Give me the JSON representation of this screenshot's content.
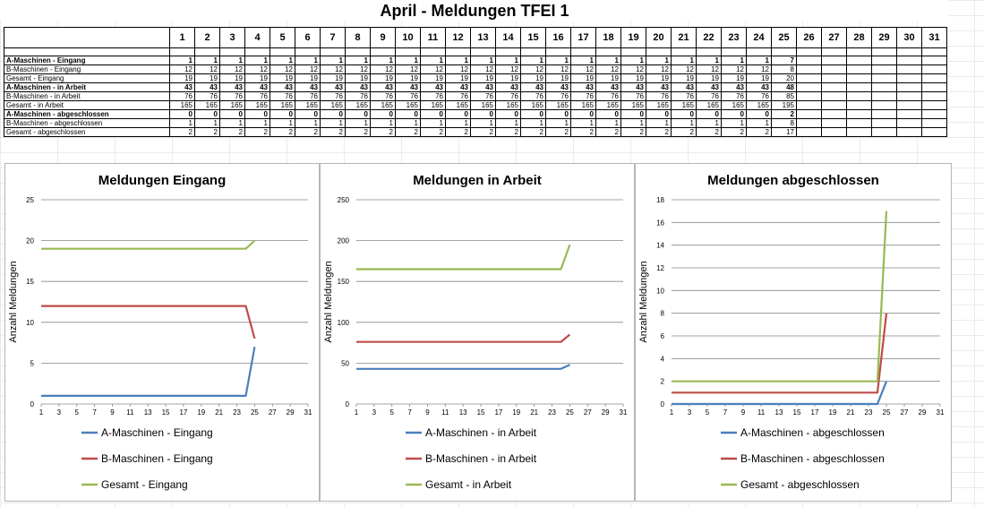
{
  "title": "April - Meldungen TFEI 1",
  "days": [
    1,
    2,
    3,
    4,
    5,
    6,
    7,
    8,
    9,
    10,
    11,
    12,
    13,
    14,
    15,
    16,
    17,
    18,
    19,
    20,
    21,
    22,
    23,
    24,
    25,
    26,
    27,
    28,
    29,
    30,
    31
  ],
  "table": {
    "rows": [
      {
        "label": "A-Maschinen - Eingang",
        "bold": true,
        "values": [
          1,
          1,
          1,
          1,
          1,
          1,
          1,
          1,
          1,
          1,
          1,
          1,
          1,
          1,
          1,
          1,
          1,
          1,
          1,
          1,
          1,
          1,
          1,
          1,
          7
        ]
      },
      {
        "label": "B-Maschinen - Eingang",
        "bold": false,
        "values": [
          12,
          12,
          12,
          12,
          12,
          12,
          12,
          12,
          12,
          12,
          12,
          12,
          12,
          12,
          12,
          12,
          12,
          12,
          12,
          12,
          12,
          12,
          12,
          12,
          8
        ]
      },
      {
        "label": "Gesamt - Eingang",
        "bold": false,
        "values": [
          19,
          19,
          19,
          19,
          19,
          19,
          19,
          19,
          19,
          19,
          19,
          19,
          19,
          19,
          19,
          19,
          19,
          19,
          19,
          19,
          19,
          19,
          19,
          19,
          20
        ]
      },
      {
        "label": "A-Maschinen - in Arbeit",
        "bold": true,
        "values": [
          43,
          43,
          43,
          43,
          43,
          43,
          43,
          43,
          43,
          43,
          43,
          43,
          43,
          43,
          43,
          43,
          43,
          43,
          43,
          43,
          43,
          43,
          43,
          43,
          48
        ]
      },
      {
        "label": "B-Maschinen - in Arbeit",
        "bold": false,
        "values": [
          76,
          76,
          76,
          76,
          76,
          76,
          76,
          76,
          76,
          76,
          76,
          76,
          76,
          76,
          76,
          76,
          76,
          76,
          76,
          76,
          76,
          76,
          76,
          76,
          85
        ]
      },
      {
        "label": "Gesamt - in Arbeit",
        "bold": false,
        "values": [
          165,
          165,
          165,
          165,
          165,
          165,
          165,
          165,
          165,
          165,
          165,
          165,
          165,
          165,
          165,
          165,
          165,
          165,
          165,
          165,
          165,
          165,
          165,
          165,
          195
        ]
      },
      {
        "label": "A-Maschinen - abgeschlossen",
        "bold": true,
        "values": [
          0,
          0,
          0,
          0,
          0,
          0,
          0,
          0,
          0,
          0,
          0,
          0,
          0,
          0,
          0,
          0,
          0,
          0,
          0,
          0,
          0,
          0,
          0,
          0,
          2
        ]
      },
      {
        "label": "B-Maschinen - abgeschlossen",
        "bold": false,
        "values": [
          1,
          1,
          1,
          1,
          1,
          1,
          1,
          1,
          1,
          1,
          1,
          1,
          1,
          1,
          1,
          1,
          1,
          1,
          1,
          1,
          1,
          1,
          1,
          1,
          8
        ]
      },
      {
        "label": "Gesamt - abgeschlossen",
        "bold": false,
        "values": [
          2,
          2,
          2,
          2,
          2,
          2,
          2,
          2,
          2,
          2,
          2,
          2,
          2,
          2,
          2,
          2,
          2,
          2,
          2,
          2,
          2,
          2,
          2,
          2,
          17
        ]
      }
    ]
  },
  "colors": {
    "a": "#4a7ebb",
    "b": "#be4b48",
    "gesamt": "#98b954",
    "grid": "#868686"
  },
  "chart_data": [
    {
      "type": "line",
      "title": "Meldungen  Eingang",
      "ylabel": "Anzahl Meldungen",
      "xlabel": "",
      "ylim": [
        0,
        25
      ],
      "yticks": [
        0,
        5,
        10,
        15,
        20,
        25
      ],
      "xticks": [
        1,
        3,
        5,
        7,
        9,
        11,
        13,
        15,
        17,
        19,
        21,
        23,
        25,
        27,
        29,
        31
      ],
      "xlim": [
        1,
        31
      ],
      "grid": true,
      "legend": "bottom",
      "series": [
        {
          "name": "A-Maschinen - Eingang",
          "color_key": "a",
          "x": [
            1,
            2,
            3,
            4,
            5,
            6,
            7,
            8,
            9,
            10,
            11,
            12,
            13,
            14,
            15,
            16,
            17,
            18,
            19,
            20,
            21,
            22,
            23,
            24,
            25
          ],
          "values": [
            1,
            1,
            1,
            1,
            1,
            1,
            1,
            1,
            1,
            1,
            1,
            1,
            1,
            1,
            1,
            1,
            1,
            1,
            1,
            1,
            1,
            1,
            1,
            1,
            7
          ]
        },
        {
          "name": "B-Maschinen - Eingang",
          "color_key": "b",
          "x": [
            1,
            2,
            3,
            4,
            5,
            6,
            7,
            8,
            9,
            10,
            11,
            12,
            13,
            14,
            15,
            16,
            17,
            18,
            19,
            20,
            21,
            22,
            23,
            24,
            25
          ],
          "values": [
            12,
            12,
            12,
            12,
            12,
            12,
            12,
            12,
            12,
            12,
            12,
            12,
            12,
            12,
            12,
            12,
            12,
            12,
            12,
            12,
            12,
            12,
            12,
            12,
            8
          ]
        },
        {
          "name": "Gesamt - Eingang",
          "color_key": "gesamt",
          "x": [
            1,
            2,
            3,
            4,
            5,
            6,
            7,
            8,
            9,
            10,
            11,
            12,
            13,
            14,
            15,
            16,
            17,
            18,
            19,
            20,
            21,
            22,
            23,
            24,
            25
          ],
          "values": [
            19,
            19,
            19,
            19,
            19,
            19,
            19,
            19,
            19,
            19,
            19,
            19,
            19,
            19,
            19,
            19,
            19,
            19,
            19,
            19,
            19,
            19,
            19,
            19,
            20
          ]
        }
      ]
    },
    {
      "type": "line",
      "title": "Meldungen  in Arbeit",
      "ylabel": "Anzahl Meldungen",
      "xlabel": "",
      "ylim": [
        0,
        250
      ],
      "yticks": [
        0,
        50,
        100,
        150,
        200,
        250
      ],
      "xticks": [
        1,
        3,
        5,
        7,
        9,
        11,
        13,
        15,
        17,
        19,
        21,
        23,
        25,
        27,
        29,
        31
      ],
      "xlim": [
        1,
        31
      ],
      "grid": true,
      "legend": "bottom",
      "series": [
        {
          "name": "A-Maschinen - in Arbeit",
          "color_key": "a",
          "x": [
            1,
            2,
            3,
            4,
            5,
            6,
            7,
            8,
            9,
            10,
            11,
            12,
            13,
            14,
            15,
            16,
            17,
            18,
            19,
            20,
            21,
            22,
            23,
            24,
            25
          ],
          "values": [
            43,
            43,
            43,
            43,
            43,
            43,
            43,
            43,
            43,
            43,
            43,
            43,
            43,
            43,
            43,
            43,
            43,
            43,
            43,
            43,
            43,
            43,
            43,
            43,
            48
          ]
        },
        {
          "name": "B-Maschinen - in Arbeit",
          "color_key": "b",
          "x": [
            1,
            2,
            3,
            4,
            5,
            6,
            7,
            8,
            9,
            10,
            11,
            12,
            13,
            14,
            15,
            16,
            17,
            18,
            19,
            20,
            21,
            22,
            23,
            24,
            25
          ],
          "values": [
            76,
            76,
            76,
            76,
            76,
            76,
            76,
            76,
            76,
            76,
            76,
            76,
            76,
            76,
            76,
            76,
            76,
            76,
            76,
            76,
            76,
            76,
            76,
            76,
            85
          ]
        },
        {
          "name": "Gesamt - in Arbeit",
          "color_key": "gesamt",
          "x": [
            1,
            2,
            3,
            4,
            5,
            6,
            7,
            8,
            9,
            10,
            11,
            12,
            13,
            14,
            15,
            16,
            17,
            18,
            19,
            20,
            21,
            22,
            23,
            24,
            25
          ],
          "values": [
            165,
            165,
            165,
            165,
            165,
            165,
            165,
            165,
            165,
            165,
            165,
            165,
            165,
            165,
            165,
            165,
            165,
            165,
            165,
            165,
            165,
            165,
            165,
            165,
            195
          ]
        }
      ]
    },
    {
      "type": "line",
      "title": "Meldungen  abgeschlossen",
      "ylabel": "Anzahl Meldungen",
      "xlabel": "",
      "ylim": [
        0,
        18
      ],
      "yticks": [
        0,
        2,
        4,
        6,
        8,
        10,
        12,
        14,
        16,
        18
      ],
      "xticks": [
        1,
        3,
        5,
        7,
        9,
        11,
        13,
        15,
        17,
        19,
        21,
        23,
        25,
        27,
        29,
        31
      ],
      "xlim": [
        1,
        31
      ],
      "grid": true,
      "legend": "bottom",
      "series": [
        {
          "name": "A-Maschinen - abgeschlossen",
          "color_key": "a",
          "x": [
            1,
            2,
            3,
            4,
            5,
            6,
            7,
            8,
            9,
            10,
            11,
            12,
            13,
            14,
            15,
            16,
            17,
            18,
            19,
            20,
            21,
            22,
            23,
            24,
            25
          ],
          "values": [
            0,
            0,
            0,
            0,
            0,
            0,
            0,
            0,
            0,
            0,
            0,
            0,
            0,
            0,
            0,
            0,
            0,
            0,
            0,
            0,
            0,
            0,
            0,
            0,
            2
          ]
        },
        {
          "name": "B-Maschinen - abgeschlossen",
          "color_key": "b",
          "x": [
            1,
            2,
            3,
            4,
            5,
            6,
            7,
            8,
            9,
            10,
            11,
            12,
            13,
            14,
            15,
            16,
            17,
            18,
            19,
            20,
            21,
            22,
            23,
            24,
            25
          ],
          "values": [
            1,
            1,
            1,
            1,
            1,
            1,
            1,
            1,
            1,
            1,
            1,
            1,
            1,
            1,
            1,
            1,
            1,
            1,
            1,
            1,
            1,
            1,
            1,
            1,
            8
          ]
        },
        {
          "name": "Gesamt - abgeschlossen",
          "color_key": "gesamt",
          "x": [
            1,
            2,
            3,
            4,
            5,
            6,
            7,
            8,
            9,
            10,
            11,
            12,
            13,
            14,
            15,
            16,
            17,
            18,
            19,
            20,
            21,
            22,
            23,
            24,
            25
          ],
          "values": [
            2,
            2,
            2,
            2,
            2,
            2,
            2,
            2,
            2,
            2,
            2,
            2,
            2,
            2,
            2,
            2,
            2,
            2,
            2,
            2,
            2,
            2,
            2,
            2,
            17
          ]
        }
      ]
    }
  ]
}
